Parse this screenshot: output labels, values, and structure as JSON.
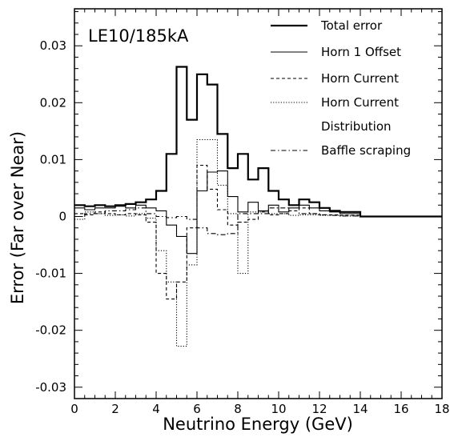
{
  "chart_data": {
    "type": "line",
    "title": "",
    "annotation": "LE10/185kA",
    "xlabel": "Neutrino Energy (GeV)",
    "ylabel": "Error (Far over Near)",
    "xlim": [
      0,
      18
    ],
    "ylim": [
      -0.032,
      0.0365
    ],
    "xticks": [
      "0",
      "2",
      "4",
      "6",
      "8",
      "10",
      "12",
      "14",
      "16",
      "18"
    ],
    "yticks": [
      "-0.03",
      "-0.02",
      "-0.01",
      "0",
      "0.01",
      "0.02",
      "0.03"
    ],
    "ytick_values": [
      -0.03,
      -0.02,
      -0.01,
      0,
      0.01,
      0.02,
      0.03
    ],
    "grid": false,
    "legend_position": "top-right",
    "bin_edges": [
      0,
      0.5,
      1,
      1.5,
      2,
      2.5,
      3,
      3.5,
      4,
      4.5,
      5,
      5.5,
      6,
      6.5,
      7,
      7.5,
      8,
      8.5,
      9,
      9.5,
      10,
      10.5,
      11,
      11.5,
      12,
      12.5,
      13,
      13.5,
      14,
      14.5,
      15,
      15.5,
      16,
      16.5,
      17,
      17.5,
      18
    ],
    "series": [
      {
        "name": "Total error",
        "style": "solid-thick",
        "values": [
          0.002,
          0.0018,
          0.002,
          0.0018,
          0.002,
          0.0022,
          0.0025,
          0.003,
          0.0045,
          0.011,
          0.0263,
          0.017,
          0.025,
          0.0232,
          0.0145,
          0.0085,
          0.011,
          0.0065,
          0.0085,
          0.0045,
          0.003,
          0.002,
          0.003,
          0.0025,
          0.0015,
          0.001,
          0.0008,
          0.0008,
          0.0,
          0.0,
          0.0,
          0.0,
          0.0,
          0.0,
          0.0,
          0.0
        ]
      },
      {
        "name": "Horn 1 Offset",
        "style": "solid-thin",
        "values": [
          0.0015,
          0.0012,
          0.0015,
          0.0015,
          0.0018,
          0.0015,
          0.002,
          0.0015,
          0.001,
          -0.0015,
          -0.0035,
          -0.0065,
          0.0045,
          0.0078,
          0.008,
          0.0035,
          0.0008,
          0.0025,
          0.001,
          0.002,
          0.0008,
          0.0015,
          0.002,
          0.0015,
          0.001,
          0.0008,
          0.0005,
          0.0005,
          0.0,
          0.0,
          0.0,
          0.0,
          0.0,
          0.0,
          0.0,
          0.0
        ]
      },
      {
        "name": "Horn Current",
        "style": "dashed",
        "values": [
          0.0005,
          0.0003,
          0.0008,
          0.0005,
          0.0003,
          0.0005,
          0.0003,
          -0.001,
          -0.01,
          -0.0145,
          -0.0115,
          -0.002,
          0.009,
          0.0048,
          0.0012,
          -0.0015,
          -0.001,
          -0.0005,
          0.0008,
          0.0003,
          0.0005,
          0.001,
          0.0015,
          0.0005,
          0.0003,
          0.0003,
          0.0002,
          0.0002,
          0.0,
          0.0,
          0.0,
          0.0,
          0.0,
          0.0,
          0.0,
          0.0
        ]
      },
      {
        "name": "Horn Current Distribution",
        "style": "dotted",
        "values": [
          -0.0005,
          0.0008,
          0.0005,
          0.0002,
          0.0003,
          0.0001,
          0.0005,
          -0.0003,
          -0.006,
          -0.0115,
          -0.0228,
          -0.0085,
          0.0135,
          0.0135,
          0.0055,
          0.0005,
          -0.01,
          0.0008,
          0.0008,
          0.0005,
          0.0005,
          0.0002,
          0.0003,
          0.0003,
          0.0002,
          0.0002,
          0.0001,
          0.0001,
          0.0,
          0.0,
          0.0,
          0.0,
          0.0,
          0.0,
          0.0,
          0.0
        ]
      },
      {
        "name": "Baffle scraping",
        "style": "dash-dot",
        "values": [
          0.0,
          0.0005,
          0.0005,
          0.001,
          0.001,
          0.0012,
          0.0015,
          0.0005,
          0.0,
          -0.0002,
          0.0,
          -0.0005,
          -0.002,
          -0.003,
          -0.0032,
          -0.003,
          0.0005,
          0.0005,
          0.0005,
          0.0015,
          0.0015,
          0.002,
          0.0005,
          0.0005,
          0.0003,
          0.0002,
          0.0001,
          0.0001,
          0.0,
          0.0,
          0.0,
          0.0,
          0.0,
          0.0,
          0.0,
          0.0
        ]
      }
    ]
  },
  "legend": {
    "items": [
      {
        "label": "Total error",
        "style": "solid-thick"
      },
      {
        "label": "Horn 1 Offset",
        "style": "solid-thin"
      },
      {
        "label": "Horn Current",
        "style": "dashed"
      },
      {
        "label": "Horn Current",
        "style": "dotted"
      },
      {
        "label": "Distribution",
        "style": "none"
      },
      {
        "label": "Baffle scraping",
        "style": "dash-dot"
      }
    ]
  }
}
